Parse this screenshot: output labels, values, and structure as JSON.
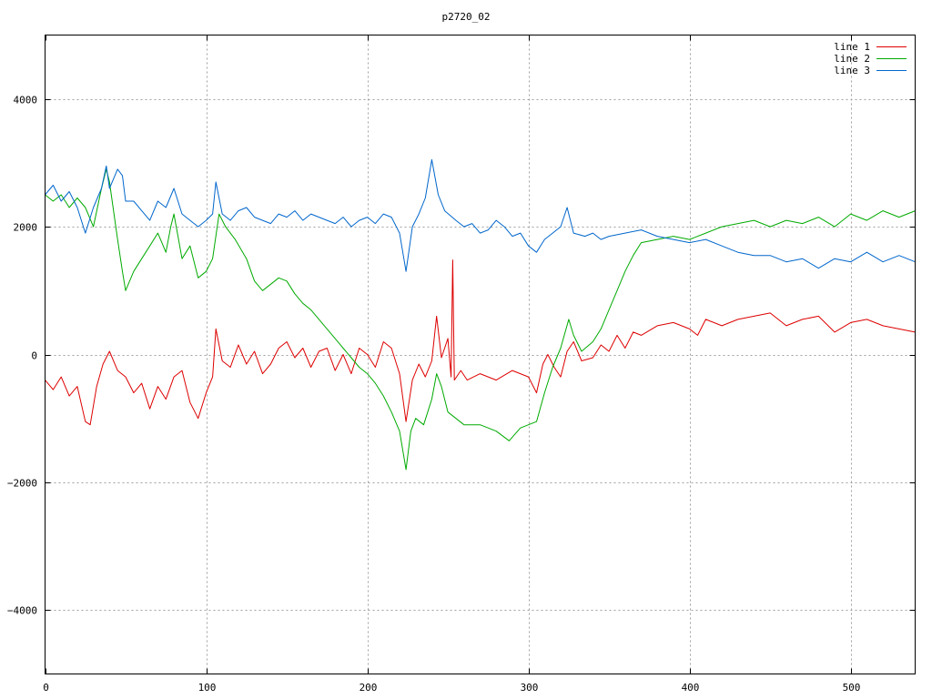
{
  "chart_data": {
    "type": "line",
    "title": "p2720_02",
    "xlim": [
      0,
      540
    ],
    "ylim": [
      -5000,
      5000
    ],
    "xticks": [
      0,
      100,
      200,
      300,
      400,
      500
    ],
    "yticks": [
      -4000,
      -2000,
      0,
      2000,
      4000
    ],
    "ytick_labels": [
      "−4000",
      "−2000",
      "0",
      "2000",
      "4000"
    ],
    "grid": true,
    "legend_position": "top-right",
    "series": [
      {
        "name": "line 1",
        "color": "#dd0000",
        "points": [
          [
            0,
            -400
          ],
          [
            5,
            -550
          ],
          [
            10,
            -350
          ],
          [
            15,
            -650
          ],
          [
            20,
            -500
          ],
          [
            25,
            -1050
          ],
          [
            28,
            -1100
          ],
          [
            32,
            -500
          ],
          [
            36,
            -150
          ],
          [
            40,
            50
          ],
          [
            45,
            -250
          ],
          [
            50,
            -350
          ],
          [
            55,
            -600
          ],
          [
            60,
            -450
          ],
          [
            65,
            -850
          ],
          [
            70,
            -500
          ],
          [
            75,
            -700
          ],
          [
            80,
            -350
          ],
          [
            85,
            -250
          ],
          [
            90,
            -750
          ],
          [
            95,
            -1000
          ],
          [
            100,
            -600
          ],
          [
            104,
            -350
          ],
          [
            106,
            400
          ],
          [
            110,
            -100
          ],
          [
            115,
            -200
          ],
          [
            120,
            150
          ],
          [
            125,
            -150
          ],
          [
            130,
            50
          ],
          [
            135,
            -300
          ],
          [
            140,
            -150
          ],
          [
            145,
            100
          ],
          [
            150,
            200
          ],
          [
            155,
            -50
          ],
          [
            160,
            100
          ],
          [
            165,
            -200
          ],
          [
            170,
            50
          ],
          [
            175,
            100
          ],
          [
            180,
            -250
          ],
          [
            185,
            0
          ],
          [
            190,
            -300
          ],
          [
            195,
            100
          ],
          [
            200,
            0
          ],
          [
            205,
            -200
          ],
          [
            210,
            200
          ],
          [
            215,
            100
          ],
          [
            220,
            -300
          ],
          [
            224,
            -1050
          ],
          [
            228,
            -400
          ],
          [
            232,
            -150
          ],
          [
            236,
            -350
          ],
          [
            240,
            -100
          ],
          [
            243,
            600
          ],
          [
            246,
            -50
          ],
          [
            250,
            250
          ],
          [
            252,
            -350
          ],
          [
            253,
            1480
          ],
          [
            254,
            -400
          ],
          [
            258,
            -250
          ],
          [
            262,
            -400
          ],
          [
            270,
            -300
          ],
          [
            280,
            -400
          ],
          [
            290,
            -250
          ],
          [
            300,
            -350
          ],
          [
            305,
            -600
          ],
          [
            309,
            -150
          ],
          [
            312,
            0
          ],
          [
            316,
            -200
          ],
          [
            320,
            -350
          ],
          [
            324,
            50
          ],
          [
            328,
            200
          ],
          [
            333,
            -100
          ],
          [
            340,
            -50
          ],
          [
            345,
            150
          ],
          [
            350,
            50
          ],
          [
            355,
            300
          ],
          [
            360,
            100
          ],
          [
            365,
            350
          ],
          [
            370,
            300
          ],
          [
            380,
            450
          ],
          [
            390,
            500
          ],
          [
            400,
            400
          ],
          [
            405,
            300
          ],
          [
            410,
            550
          ],
          [
            420,
            450
          ],
          [
            430,
            550
          ],
          [
            440,
            600
          ],
          [
            450,
            650
          ],
          [
            460,
            450
          ],
          [
            470,
            550
          ],
          [
            480,
            600
          ],
          [
            490,
            350
          ],
          [
            500,
            500
          ],
          [
            510,
            550
          ],
          [
            520,
            450
          ],
          [
            530,
            400
          ],
          [
            540,
            350
          ]
        ]
      },
      {
        "name": "line 2",
        "color": "#00aa00",
        "points": [
          [
            0,
            2500
          ],
          [
            5,
            2400
          ],
          [
            10,
            2500
          ],
          [
            15,
            2300
          ],
          [
            20,
            2450
          ],
          [
            25,
            2300
          ],
          [
            30,
            2000
          ],
          [
            35,
            2600
          ],
          [
            38,
            2900
          ],
          [
            40,
            2700
          ],
          [
            45,
            1800
          ],
          [
            48,
            1300
          ],
          [
            50,
            1000
          ],
          [
            55,
            1300
          ],
          [
            60,
            1500
          ],
          [
            65,
            1700
          ],
          [
            70,
            1900
          ],
          [
            75,
            1600
          ],
          [
            78,
            2000
          ],
          [
            80,
            2200
          ],
          [
            85,
            1500
          ],
          [
            90,
            1700
          ],
          [
            95,
            1200
          ],
          [
            100,
            1300
          ],
          [
            104,
            1500
          ],
          [
            108,
            2200
          ],
          [
            112,
            2000
          ],
          [
            118,
            1800
          ],
          [
            125,
            1500
          ],
          [
            130,
            1150
          ],
          [
            135,
            1000
          ],
          [
            140,
            1100
          ],
          [
            145,
            1200
          ],
          [
            150,
            1150
          ],
          [
            155,
            950
          ],
          [
            160,
            800
          ],
          [
            165,
            700
          ],
          [
            170,
            550
          ],
          [
            175,
            400
          ],
          [
            180,
            250
          ],
          [
            185,
            100
          ],
          [
            190,
            -50
          ],
          [
            195,
            -200
          ],
          [
            200,
            -300
          ],
          [
            205,
            -450
          ],
          [
            210,
            -650
          ],
          [
            215,
            -900
          ],
          [
            220,
            -1200
          ],
          [
            224,
            -1800
          ],
          [
            227,
            -1200
          ],
          [
            230,
            -1000
          ],
          [
            235,
            -1100
          ],
          [
            240,
            -700
          ],
          [
            243,
            -300
          ],
          [
            246,
            -500
          ],
          [
            250,
            -900
          ],
          [
            255,
            -1000
          ],
          [
            260,
            -1100
          ],
          [
            270,
            -1100
          ],
          [
            280,
            -1200
          ],
          [
            288,
            -1350
          ],
          [
            295,
            -1150
          ],
          [
            305,
            -1050
          ],
          [
            310,
            -600
          ],
          [
            315,
            -200
          ],
          [
            320,
            100
          ],
          [
            325,
            550
          ],
          [
            328,
            300
          ],
          [
            333,
            50
          ],
          [
            340,
            200
          ],
          [
            345,
            400
          ],
          [
            350,
            700
          ],
          [
            355,
            1000
          ],
          [
            360,
            1300
          ],
          [
            365,
            1550
          ],
          [
            370,
            1750
          ],
          [
            380,
            1800
          ],
          [
            390,
            1850
          ],
          [
            400,
            1800
          ],
          [
            410,
            1900
          ],
          [
            420,
            2000
          ],
          [
            430,
            2050
          ],
          [
            440,
            2100
          ],
          [
            450,
            2000
          ],
          [
            460,
            2100
          ],
          [
            470,
            2050
          ],
          [
            480,
            2150
          ],
          [
            490,
            2000
          ],
          [
            500,
            2200
          ],
          [
            510,
            2100
          ],
          [
            520,
            2250
          ],
          [
            530,
            2150
          ],
          [
            540,
            2250
          ]
        ]
      },
      {
        "name": "line 3",
        "color": "#0066cc",
        "points": [
          [
            0,
            2500
          ],
          [
            5,
            2650
          ],
          [
            10,
            2400
          ],
          [
            15,
            2550
          ],
          [
            20,
            2300
          ],
          [
            25,
            1900
          ],
          [
            30,
            2300
          ],
          [
            35,
            2600
          ],
          [
            38,
            2950
          ],
          [
            40,
            2600
          ],
          [
            45,
            2900
          ],
          [
            48,
            2800
          ],
          [
            50,
            2400
          ],
          [
            55,
            2400
          ],
          [
            60,
            2250
          ],
          [
            65,
            2100
          ],
          [
            70,
            2400
          ],
          [
            75,
            2300
          ],
          [
            80,
            2600
          ],
          [
            85,
            2200
          ],
          [
            90,
            2100
          ],
          [
            95,
            2000
          ],
          [
            100,
            2100
          ],
          [
            104,
            2200
          ],
          [
            106,
            2700
          ],
          [
            110,
            2200
          ],
          [
            115,
            2100
          ],
          [
            120,
            2250
          ],
          [
            125,
            2300
          ],
          [
            130,
            2150
          ],
          [
            135,
            2100
          ],
          [
            140,
            2050
          ],
          [
            145,
            2200
          ],
          [
            150,
            2150
          ],
          [
            155,
            2250
          ],
          [
            160,
            2100
          ],
          [
            165,
            2200
          ],
          [
            170,
            2150
          ],
          [
            175,
            2100
          ],
          [
            180,
            2050
          ],
          [
            185,
            2150
          ],
          [
            190,
            2000
          ],
          [
            195,
            2100
          ],
          [
            200,
            2150
          ],
          [
            205,
            2050
          ],
          [
            210,
            2200
          ],
          [
            215,
            2150
          ],
          [
            220,
            1900
          ],
          [
            224,
            1300
          ],
          [
            228,
            2000
          ],
          [
            232,
            2200
          ],
          [
            236,
            2450
          ],
          [
            240,
            3050
          ],
          [
            244,
            2500
          ],
          [
            248,
            2250
          ],
          [
            255,
            2100
          ],
          [
            260,
            2000
          ],
          [
            265,
            2050
          ],
          [
            270,
            1900
          ],
          [
            275,
            1950
          ],
          [
            280,
            2100
          ],
          [
            285,
            2000
          ],
          [
            290,
            1850
          ],
          [
            295,
            1900
          ],
          [
            300,
            1700
          ],
          [
            305,
            1600
          ],
          [
            310,
            1800
          ],
          [
            315,
            1900
          ],
          [
            320,
            2000
          ],
          [
            324,
            2300
          ],
          [
            328,
            1900
          ],
          [
            335,
            1850
          ],
          [
            340,
            1900
          ],
          [
            345,
            1800
          ],
          [
            350,
            1850
          ],
          [
            360,
            1900
          ],
          [
            370,
            1950
          ],
          [
            380,
            1850
          ],
          [
            390,
            1800
          ],
          [
            400,
            1750
          ],
          [
            410,
            1800
          ],
          [
            420,
            1700
          ],
          [
            430,
            1600
          ],
          [
            440,
            1550
          ],
          [
            450,
            1550
          ],
          [
            460,
            1450
          ],
          [
            470,
            1500
          ],
          [
            480,
            1350
          ],
          [
            490,
            1500
          ],
          [
            500,
            1450
          ],
          [
            510,
            1600
          ],
          [
            520,
            1450
          ],
          [
            530,
            1550
          ],
          [
            540,
            1450
          ]
        ]
      }
    ]
  }
}
